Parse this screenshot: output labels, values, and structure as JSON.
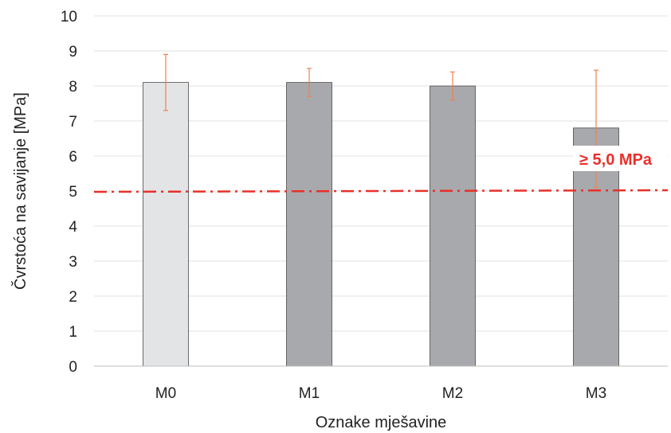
{
  "chart_data": {
    "type": "bar",
    "title": "",
    "xlabel": "Oznake mješavine",
    "ylabel": "Čvrstoća na savijanje [MPa]",
    "ylim": [
      0,
      10
    ],
    "yticks": [
      "0",
      "1",
      "2",
      "3",
      "4",
      "5",
      "6",
      "7",
      "8",
      "9",
      "10"
    ],
    "grid": "horizontal",
    "categories": [
      "M0",
      "M1",
      "M2",
      "M3"
    ],
    "values": [
      8.1,
      8.1,
      8.0,
      6.8
    ],
    "error_low": [
      7.3,
      7.7,
      7.6,
      5.1
    ],
    "error_high": [
      8.9,
      8.5,
      8.4,
      8.45
    ],
    "bar_colors": [
      "#e3e4e6",
      "#a8a9ac",
      "#a8a9ac",
      "#a8a9ac"
    ],
    "error_color": "#f08050",
    "threshold": {
      "value": 5.0,
      "label": "≥ 5,0 MPa",
      "color": "#e8302a",
      "style": "dash-dot"
    }
  }
}
